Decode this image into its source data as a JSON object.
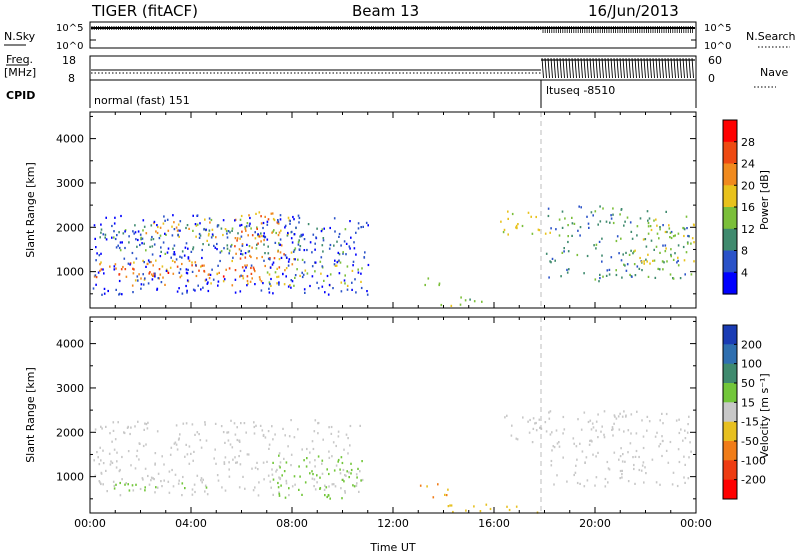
{
  "header": {
    "radar": "TIGER (fitACF)",
    "beam": "Beam 13",
    "date": "16/Jun/2013"
  },
  "aux_panels": {
    "nsky_label": "N.Sky",
    "nsky_ticks": [
      "10^5",
      "10^0"
    ],
    "nsearch_label": "N.Search",
    "nsearch_ticks": [
      "10^5",
      "10^0"
    ],
    "freq_label_1": "Freq.",
    "freq_label_2": "[MHz]",
    "freq_ticks": [
      "18",
      "8"
    ],
    "nave_label": "Nave",
    "nave_ticks": [
      "60",
      "0"
    ],
    "cpid_label": "CPID",
    "cpid_segments": [
      {
        "text": "normal (fast) 151",
        "start_hour": 0
      },
      {
        "text": "ltuseq -8510",
        "start_hour": 18
      }
    ]
  },
  "axes": {
    "y_label": "Slant Range [km]",
    "y_ticks": [
      "1000",
      "2000",
      "3000",
      "4000"
    ],
    "x_label": "Time UT",
    "x_ticks": [
      "00:00",
      "04:00",
      "08:00",
      "12:00",
      "16:00",
      "20:00",
      "00:00"
    ]
  },
  "colorbars": {
    "power": {
      "label": "Power [dB]",
      "ticks": [
        "4",
        "8",
        "12",
        "16",
        "20",
        "24",
        "28"
      ],
      "colors": [
        "#0000ff",
        "#2a52c8",
        "#3f8a6e",
        "#7bbf3a",
        "#e8c21c",
        "#f08a1e",
        "#ee4a12",
        "#ff0000"
      ]
    },
    "velocity": {
      "label": "Velocity [m s⁻¹]",
      "ticks": [
        "200",
        "100",
        "50",
        "15",
        "-15",
        "-50",
        "-100",
        "-200"
      ],
      "colors": [
        "#1a3cb4",
        "#2f6fb0",
        "#3f8a6e",
        "#72c63a",
        "#c8c8c8",
        "#e7c020",
        "#f07c18",
        "#ee3c12",
        "#ff0000"
      ]
    }
  },
  "chart_data": [
    {
      "type": "heatmap",
      "panel": "power",
      "xlabel": "Time UT",
      "ylabel": "Slant Range [km]",
      "xlim_hours": [
        0,
        24
      ],
      "ylim_km": [
        180,
        4600
      ],
      "colorbar": "Power [dB]",
      "regions": [
        {
          "t0": 0.1,
          "t1": 6.8,
          "r0": 700,
          "r1": 1300,
          "value": 24
        },
        {
          "t0": 0.1,
          "t1": 6.5,
          "r0": 900,
          "r1": 1200,
          "value": 28
        },
        {
          "t0": 0.1,
          "t1": 10.5,
          "r0": 1400,
          "r1": 2100,
          "value": 12
        },
        {
          "t0": 2.0,
          "t1": 7.5,
          "r0": 1700,
          "r1": 2200,
          "value": 20
        },
        {
          "t0": 5.5,
          "t1": 8.0,
          "r0": 1000,
          "r1": 2400,
          "value": 24
        },
        {
          "t0": 7.0,
          "t1": 10.8,
          "r0": 700,
          "r1": 1400,
          "value": 18
        },
        {
          "t0": 0.1,
          "t1": 11.0,
          "r0": 500,
          "r1": 2300,
          "value": 6
        },
        {
          "t0": 13.2,
          "t1": 14.0,
          "r0": 700,
          "r1": 1000,
          "value": 14
        },
        {
          "t0": 13.5,
          "t1": 16.0,
          "r0": 250,
          "r1": 450,
          "value": 16
        },
        {
          "t0": 16.2,
          "t1": 18.2,
          "r0": 1800,
          "r1": 2400,
          "value": 18
        },
        {
          "t0": 18.0,
          "t1": 23.9,
          "r0": 800,
          "r1": 2500,
          "value": 12
        },
        {
          "t0": 21.5,
          "t1": 23.9,
          "r0": 1200,
          "r1": 2200,
          "value": 18
        }
      ]
    },
    {
      "type": "heatmap",
      "panel": "velocity",
      "xlabel": "Time UT",
      "ylabel": "Slant Range [km]",
      "xlim_hours": [
        0,
        24
      ],
      "ylim_km": [
        180,
        4600
      ],
      "colorbar": "Velocity [m s⁻¹]",
      "regions": [
        {
          "t0": 0.1,
          "t1": 10.8,
          "r0": 600,
          "r1": 2300,
          "value": 0
        },
        {
          "t0": 7.2,
          "t1": 10.8,
          "r0": 500,
          "r1": 1500,
          "value": 35
        },
        {
          "t0": 0.8,
          "t1": 5.0,
          "r0": 700,
          "r1": 900,
          "value": 30
        },
        {
          "t0": 13.0,
          "t1": 14.2,
          "r0": 550,
          "r1": 900,
          "value": -60
        },
        {
          "t0": 14.0,
          "t1": 18.0,
          "r0": 200,
          "r1": 400,
          "value": -30
        },
        {
          "t0": 16.2,
          "t1": 18.2,
          "r0": 1800,
          "r1": 2400,
          "value": 0
        },
        {
          "t0": 18.0,
          "t1": 23.9,
          "r0": 800,
          "r1": 2500,
          "value": 0
        }
      ]
    }
  ]
}
